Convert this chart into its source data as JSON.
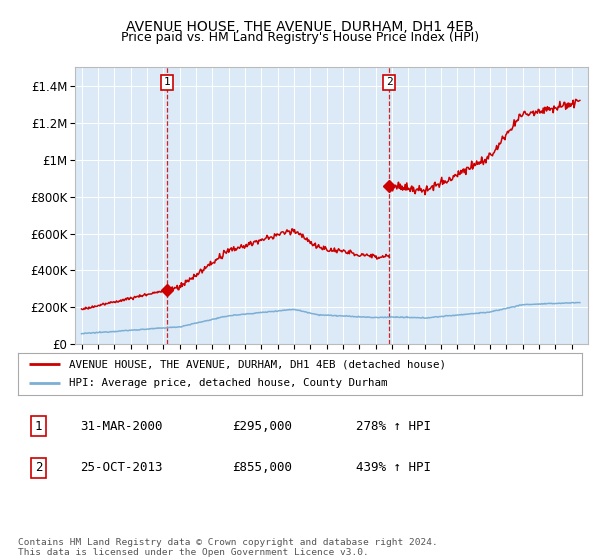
{
  "title": "AVENUE HOUSE, THE AVENUE, DURHAM, DH1 4EB",
  "subtitle": "Price paid vs. HM Land Registry's House Price Index (HPI)",
  "background_color": "#ffffff",
  "plot_bg_color": "#dce9f7",
  "ylim": [
    0,
    1500000
  ],
  "yticks": [
    0,
    200000,
    400000,
    600000,
    800000,
    1000000,
    1200000,
    1400000
  ],
  "ytick_labels": [
    "£0",
    "£200K",
    "£400K",
    "£600K",
    "£800K",
    "£1M",
    "£1.2M",
    "£1.4M"
  ],
  "sale1_date": 2000.25,
  "sale1_price": 295000,
  "sale2_date": 2013.82,
  "sale2_price": 855000,
  "legend_line1": "AVENUE HOUSE, THE AVENUE, DURHAM, DH1 4EB (detached house)",
  "legend_line2": "HPI: Average price, detached house, County Durham",
  "note1_label": "1",
  "note1_date": "31-MAR-2000",
  "note1_price": "£295,000",
  "note1_hpi": "278% ↑ HPI",
  "note2_label": "2",
  "note2_date": "25-OCT-2013",
  "note2_price": "£855,000",
  "note2_hpi": "439% ↑ HPI",
  "footer": "Contains HM Land Registry data © Crown copyright and database right 2024.\nThis data is licensed under the Open Government Licence v3.0.",
  "red_color": "#cc0000",
  "blue_color": "#7bafd4",
  "grid_color": "#ffffff"
}
